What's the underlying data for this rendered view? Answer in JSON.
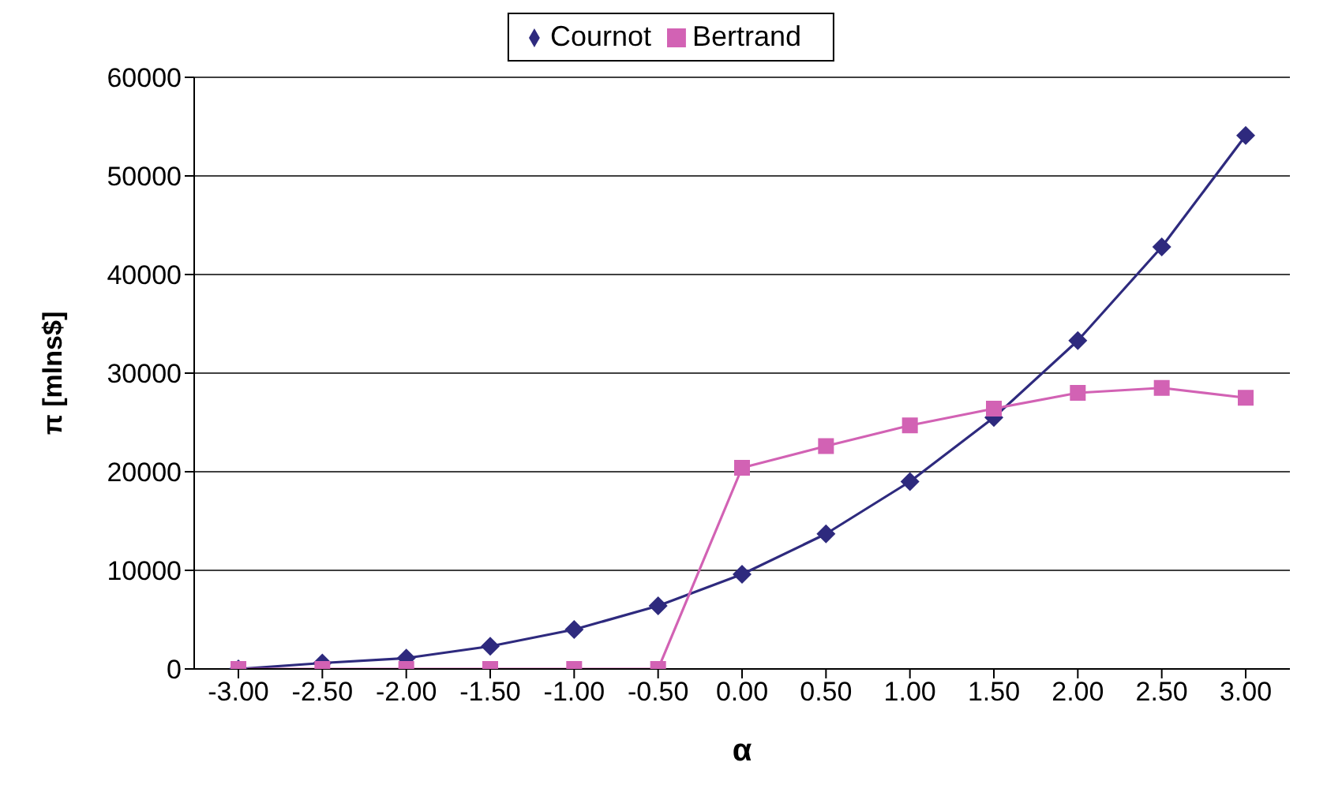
{
  "chart_data": {
    "type": "line",
    "xlabel": "α",
    "ylabel": "π [mlns$]",
    "categories": [
      "-3.00",
      "-2.50",
      "-2.00",
      "-1.50",
      "-1.00",
      "-0.50",
      "0.00",
      "0.50",
      "1.00",
      "1.50",
      "2.00",
      "2.50",
      "3.00"
    ],
    "series": [
      {
        "name": "Cournot",
        "color": "#2e2a7e",
        "marker": "diamond",
        "values": [
          0,
          600,
          1100,
          2300,
          4000,
          6400,
          9600,
          13700,
          19000,
          25500,
          33300,
          42800,
          54100
        ]
      },
      {
        "name": "Bertrand",
        "color": "#d262b4",
        "marker": "square",
        "values": [
          0,
          0,
          0,
          0,
          0,
          0,
          20400,
          22600,
          24700,
          26400,
          28000,
          28500,
          27500
        ]
      }
    ],
    "ylim": [
      0,
      60000
    ],
    "yticks": [
      0,
      10000,
      20000,
      30000,
      40000,
      50000,
      60000
    ],
    "grid": "y",
    "legend": "top",
    "line_style": "solid"
  }
}
